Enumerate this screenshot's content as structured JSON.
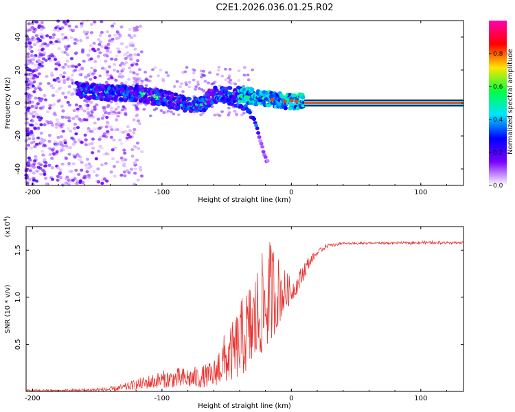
{
  "title": "C2E1.2026.036.01.25.R02",
  "chart_data": [
    {
      "type": "heatmap",
      "xlabel": "Height of straight line (km)",
      "ylabel": "Frequency (Hz)",
      "xlim": [
        -205,
        133
      ],
      "ylim": [
        -50,
        50
      ],
      "xticks": [
        -200,
        -100,
        0,
        100
      ],
      "yticks": [
        -40,
        -20,
        0,
        20,
        40
      ],
      "colorbar": {
        "label": "Normalized spectral amplitude",
        "range": [
          0,
          1
        ],
        "ticks": [
          "0.0",
          "0.2",
          "0.4",
          "0.6",
          "0.8"
        ],
        "stops": [
          "#ffffff",
          "#7b00ff",
          "#0000ff",
          "#00e5ff",
          "#00ff40",
          "#ffe600",
          "#ff0000",
          "#ff00b0"
        ]
      },
      "features": {
        "carrier_line": {
          "x_from": 10,
          "x_to": 133,
          "frequency": 0,
          "amplitude": 1.0
        },
        "main_ridge": [
          [
            -165,
            8
          ],
          [
            -140,
            6
          ],
          [
            -120,
            6
          ],
          [
            -100,
            3
          ],
          [
            -80,
            -1
          ],
          [
            -70,
            -2
          ],
          [
            -60,
            5
          ],
          [
            -40,
            5
          ],
          [
            -20,
            3
          ],
          [
            -5,
            1
          ],
          [
            10,
            1
          ]
        ],
        "secondary_branch": [
          [
            -60,
            4
          ],
          [
            -45,
            0
          ],
          [
            -35,
            -3
          ],
          [
            -28,
            -12
          ],
          [
            -25,
            -20
          ],
          [
            -18,
            -37
          ]
        ],
        "noise_region": {
          "x_from": -205,
          "x_to": -125,
          "frequency_range": [
            -50,
            50
          ]
        }
      }
    },
    {
      "type": "line",
      "xlabel": "Height of straight line (km)",
      "ylabel": "SNR (10 * v/v)",
      "scale_label": "(x10",
      "scale_exponent": "4",
      "xlim": [
        -205,
        133
      ],
      "ylim": [
        0,
        1.75
      ],
      "xticks": [
        -200,
        -100,
        0,
        100
      ],
      "yticks": [
        "0.5",
        "1.0",
        "1.5"
      ],
      "color": "#e8302c",
      "envelope": {
        "x": [
          -205,
          -180,
          -160,
          -140,
          -130,
          -120,
          -110,
          -100,
          -90,
          -80,
          -70,
          -60,
          -55,
          -50,
          -45,
          -40,
          -35,
          -30,
          -25,
          -20,
          -15,
          -10,
          -5,
          0,
          5,
          10,
          15,
          20,
          25,
          30,
          40,
          50,
          60,
          80,
          100,
          120,
          133
        ],
        "y": [
          0.02,
          0.02,
          0.03,
          0.05,
          0.08,
          0.13,
          0.18,
          0.22,
          0.25,
          0.26,
          0.27,
          0.33,
          0.55,
          0.65,
          0.75,
          0.95,
          1.1,
          1.25,
          1.4,
          1.55,
          1.65,
          1.45,
          1.3,
          1.2,
          1.25,
          1.4,
          1.45,
          1.5,
          1.55,
          1.57,
          1.58,
          1.58,
          1.58,
          1.58,
          1.59,
          1.59,
          1.59
        ],
        "floor": [
          0.0,
          0.0,
          0.0,
          0.0,
          0.01,
          0.02,
          0.03,
          0.04,
          0.04,
          0.04,
          0.04,
          0.05,
          0.08,
          0.1,
          0.12,
          0.15,
          0.2,
          0.25,
          0.35,
          0.45,
          0.55,
          0.7,
          0.85,
          0.95,
          1.05,
          1.2,
          1.35,
          1.45,
          1.5,
          1.54,
          1.56,
          1.56,
          1.57,
          1.57,
          1.57,
          1.57,
          1.57
        ]
      }
    }
  ]
}
